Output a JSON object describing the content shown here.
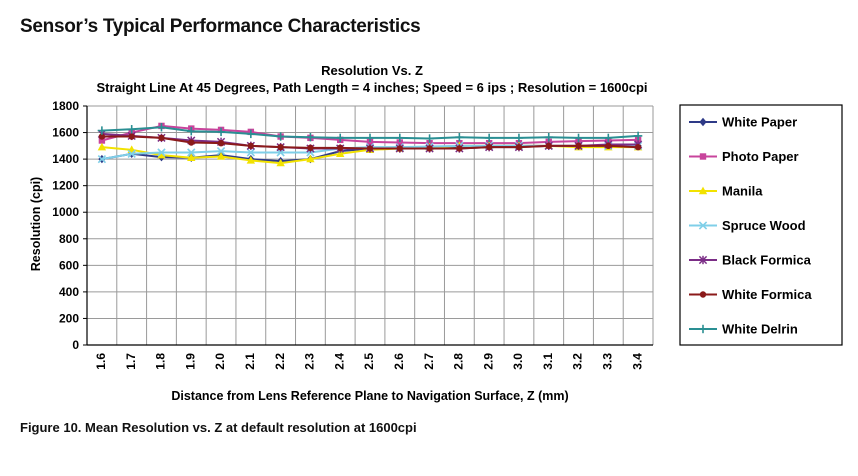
{
  "page": {
    "heading": "Sensor’s Typical Performance Characteristics",
    "caption": "Figure 10. Mean Resolution vs. Z at default resolution at 1600cpi"
  },
  "chart_data": {
    "type": "line",
    "title": "Resolution Vs. Z",
    "subtitle": "Straight Line At 45 Degrees, Path Length = 4 inches; Speed = 6 ips ; Resolution = 1600cpi",
    "xlabel": "Distance from Lens Reference Plane to Navigation Surface, Z (mm)",
    "ylabel": "Resolution (cpi)",
    "ylim": [
      0,
      1800
    ],
    "yticks": [
      "0",
      "200",
      "400",
      "600",
      "800",
      "1000",
      "1200",
      "1400",
      "1600",
      "1800"
    ],
    "grid": true,
    "legend_position": "right",
    "categories": [
      "1.6",
      "1.7",
      "1.8",
      "1.9",
      "2.0",
      "2.1",
      "2.2",
      "2.3",
      "2.4",
      "2.5",
      "2.6",
      "2.7",
      "2.8",
      "2.9",
      "3.0",
      "3.1",
      "3.2",
      "3.3",
      "3.4"
    ],
    "series": [
      {
        "name": "White Paper",
        "color": "#2e3a87",
        "marker": "diamond",
        "values": [
          1400,
          1440,
          1415,
          1410,
          1430,
          1400,
          1385,
          1400,
          1460,
          1480,
          1490,
          1490,
          1490,
          1500,
          1500,
          1500,
          1500,
          1500,
          1500
        ]
      },
      {
        "name": "Photo Paper",
        "color": "#c8449c",
        "marker": "square",
        "values": [
          1540,
          1600,
          1650,
          1630,
          1620,
          1605,
          1570,
          1560,
          1545,
          1530,
          1525,
          1520,
          1520,
          1520,
          1520,
          1530,
          1535,
          1540,
          1545
        ]
      },
      {
        "name": "Manila",
        "color": "#f2e200",
        "marker": "triangle",
        "values": [
          1490,
          1470,
          1430,
          1410,
          1420,
          1390,
          1370,
          1400,
          1440,
          1470,
          1480,
          1490,
          1500,
          1500,
          1500,
          1500,
          1490,
          1490,
          1490
        ]
      },
      {
        "name": "Spruce Wood",
        "color": "#7fcfe8",
        "marker": "x",
        "values": [
          1400,
          1440,
          1450,
          1450,
          1460,
          1450,
          1450,
          1450,
          1480,
          1490,
          1490,
          1495,
          1500,
          1500,
          1500,
          1500,
          1500,
          1500,
          1500
        ]
      },
      {
        "name": "Black Formica",
        "color": "#7b2d86",
        "marker": "star",
        "values": [
          1590,
          1575,
          1560,
          1540,
          1530,
          1500,
          1490,
          1480,
          1480,
          1480,
          1480,
          1480,
          1480,
          1490,
          1490,
          1500,
          1500,
          1510,
          1510
        ]
      },
      {
        "name": "White Formica",
        "color": "#8b1a1a",
        "marker": "circle",
        "values": [
          1570,
          1570,
          1560,
          1525,
          1520,
          1500,
          1490,
          1485,
          1485,
          1480,
          1480,
          1480,
          1480,
          1490,
          1490,
          1500,
          1500,
          1500,
          1490
        ]
      },
      {
        "name": "White Delrin",
        "color": "#2a8f93",
        "marker": "plus",
        "values": [
          1615,
          1625,
          1640,
          1610,
          1605,
          1590,
          1570,
          1565,
          1560,
          1560,
          1560,
          1555,
          1565,
          1560,
          1560,
          1565,
          1560,
          1560,
          1575
        ]
      }
    ]
  }
}
